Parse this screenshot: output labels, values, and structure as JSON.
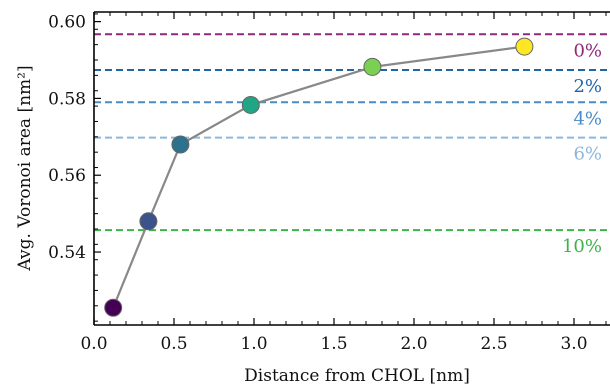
{
  "chart_data": {
    "type": "scatter",
    "xlabel": "Distance from CHOL [nm]",
    "ylabel": "Avg. Voronoi area [nm²]",
    "xlim": [
      0.0,
      3.25
    ],
    "ylim": [
      0.521,
      0.6025
    ],
    "x_ticks": [
      0.0,
      0.5,
      1.0,
      1.5,
      2.0,
      2.5,
      3.0
    ],
    "x_tick_labels": [
      "0.0",
      "0.5",
      "1.0",
      "1.5",
      "2.0",
      "2.5",
      "3.0"
    ],
    "y_ticks": [
      0.54,
      0.56,
      0.58,
      0.6
    ],
    "y_tick_labels": [
      "0.54",
      "0.56",
      "0.58",
      "0.60"
    ],
    "grid": false,
    "series": [
      {
        "x": [
          0.12,
          0.34,
          0.54,
          0.98,
          1.74,
          2.69
        ],
        "y": [
          0.5255,
          0.548,
          0.568,
          0.5783,
          0.5882,
          0.5935
        ],
        "line_color": "#888888",
        "point_colors": [
          "#440154",
          "#3b528b",
          "#2c728e",
          "#21a685",
          "#7ad151",
          "#fde725"
        ]
      }
    ],
    "reference_lines": [
      {
        "label": "0%",
        "y": 0.5967,
        "color": "#8e2a7c"
      },
      {
        "label": "2%",
        "y": 0.5874,
        "color": "#1f66a8"
      },
      {
        "label": "4%",
        "y": 0.579,
        "color": "#4a8ac6"
      },
      {
        "label": "6%",
        "y": 0.5698,
        "color": "#8cb7dc"
      },
      {
        "label": "10%",
        "y": 0.5457,
        "color": "#3cb44b"
      }
    ]
  }
}
